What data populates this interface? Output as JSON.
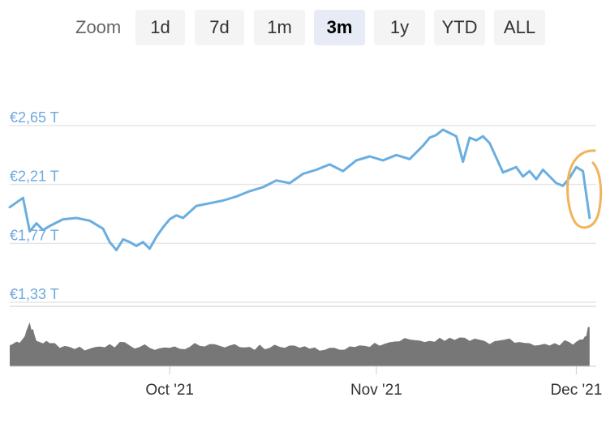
{
  "zoom": {
    "label": "Zoom",
    "buttons": [
      "1d",
      "7d",
      "1m",
      "3m",
      "1y",
      "YTD",
      "ALL"
    ],
    "selected": "3m"
  },
  "chart_data": {
    "type": "line",
    "currency_unit": "€ T",
    "y_tick_labels": [
      "€2,65 T",
      "€2,21 T",
      "€1,77 T",
      "€1,33 T"
    ],
    "y_ticks": [
      2.65,
      2.21,
      1.77,
      1.33
    ],
    "ylim": [
      1.33,
      2.65
    ],
    "x_tick_labels": [
      "Oct '21",
      "Nov '21",
      "Dec '21"
    ],
    "x_ticks": [
      "2021-10-01",
      "2021-11-01",
      "2021-12-01"
    ],
    "xlim": [
      "2021-09-07",
      "2021-12-04"
    ],
    "series": [
      {
        "color": "#6aaee0",
        "x": [
          "2021-09-07",
          "2021-09-09",
          "2021-09-10",
          "2021-09-11",
          "2021-09-12",
          "2021-09-13",
          "2021-09-15",
          "2021-09-17",
          "2021-09-19",
          "2021-09-21",
          "2021-09-22",
          "2021-09-23",
          "2021-09-24",
          "2021-09-25",
          "2021-09-26",
          "2021-09-27",
          "2021-09-28",
          "2021-09-29",
          "2021-09-30",
          "2021-10-01",
          "2021-10-02",
          "2021-10-03",
          "2021-10-05",
          "2021-10-07",
          "2021-10-09",
          "2021-10-11",
          "2021-10-13",
          "2021-10-15",
          "2021-10-17",
          "2021-10-19",
          "2021-10-21",
          "2021-10-23",
          "2021-10-25",
          "2021-10-27",
          "2021-10-29",
          "2021-10-31",
          "2021-11-02",
          "2021-11-04",
          "2021-11-06",
          "2021-11-08",
          "2021-11-09",
          "2021-11-10",
          "2021-11-11",
          "2021-11-13",
          "2021-11-14",
          "2021-11-15",
          "2021-11-16",
          "2021-11-17",
          "2021-11-18",
          "2021-11-20",
          "2021-11-22",
          "2021-11-23",
          "2021-11-24",
          "2021-11-25",
          "2021-11-26",
          "2021-11-28",
          "2021-11-29",
          "2021-11-30",
          "2021-12-01",
          "2021-12-02",
          "2021-12-03"
        ],
        "y": [
          2.04,
          2.11,
          1.86,
          1.92,
          1.87,
          1.9,
          1.95,
          1.96,
          1.94,
          1.88,
          1.78,
          1.72,
          1.8,
          1.78,
          1.75,
          1.78,
          1.73,
          1.82,
          1.89,
          1.95,
          1.98,
          1.96,
          2.05,
          2.07,
          2.09,
          2.12,
          2.16,
          2.19,
          2.24,
          2.22,
          2.29,
          2.32,
          2.36,
          2.31,
          2.39,
          2.42,
          2.39,
          2.43,
          2.4,
          2.5,
          2.56,
          2.58,
          2.62,
          2.57,
          2.38,
          2.56,
          2.54,
          2.57,
          2.52,
          2.3,
          2.34,
          2.27,
          2.31,
          2.25,
          2.32,
          2.22,
          2.2,
          2.26,
          2.34,
          2.31,
          1.96
        ]
      }
    ],
    "volume": {
      "color": "#777777",
      "x": [
        "2021-09-07",
        "2021-09-09",
        "2021-09-10",
        "2021-09-11",
        "2021-09-13",
        "2021-09-16",
        "2021-09-19",
        "2021-09-22",
        "2021-09-25",
        "2021-09-28",
        "2021-10-01",
        "2021-10-04",
        "2021-10-07",
        "2021-10-10",
        "2021-10-13",
        "2021-10-16",
        "2021-10-19",
        "2021-10-22",
        "2021-10-25",
        "2021-10-28",
        "2021-10-31",
        "2021-11-03",
        "2021-11-06",
        "2021-11-09",
        "2021-11-12",
        "2021-11-15",
        "2021-11-18",
        "2021-11-21",
        "2021-11-24",
        "2021-11-27",
        "2021-11-30",
        "2021-12-02",
        "2021-12-03"
      ],
      "relative": [
        0.45,
        0.6,
        0.95,
        0.55,
        0.5,
        0.42,
        0.38,
        0.48,
        0.45,
        0.4,
        0.4,
        0.42,
        0.48,
        0.45,
        0.42,
        0.4,
        0.45,
        0.38,
        0.4,
        0.43,
        0.42,
        0.52,
        0.58,
        0.55,
        0.62,
        0.55,
        0.48,
        0.6,
        0.5,
        0.45,
        0.52,
        0.58,
        0.85
      ]
    }
  }
}
